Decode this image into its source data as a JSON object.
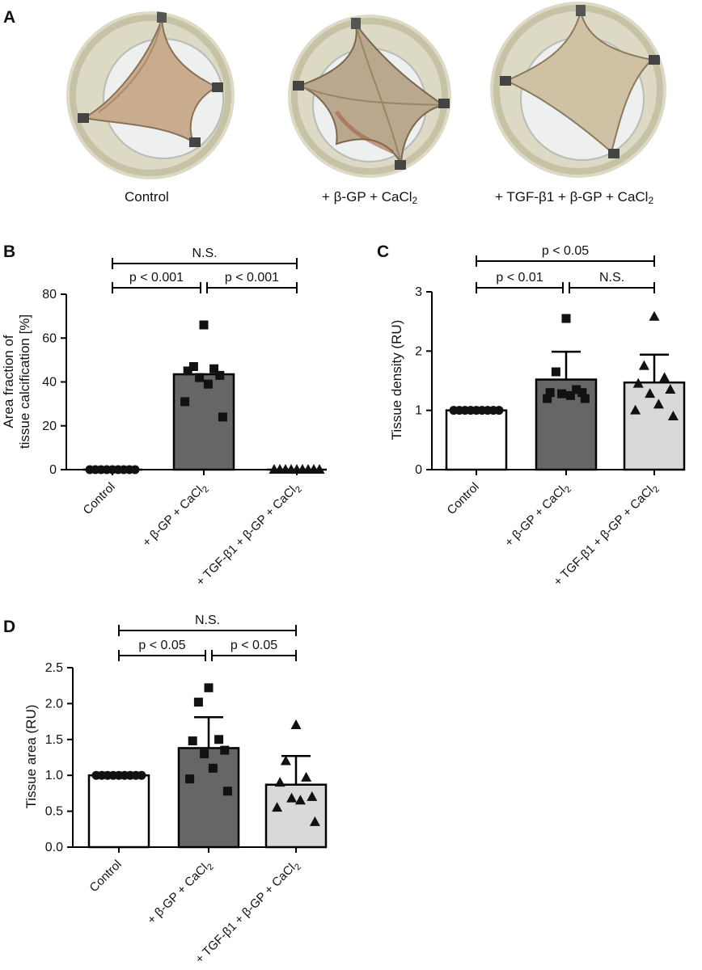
{
  "panel_a": {
    "letter": "A",
    "photos": [
      {
        "label": "Control"
      },
      {
        "label": "+ β-GP + CaCl",
        "subscript": "2"
      },
      {
        "label": "+ TGF-β1 + β-GP + CaCl",
        "subscript": "2"
      }
    ]
  },
  "colors": {
    "control_bar": "#ffffff",
    "bgp_bar": "#666666",
    "tgf_bar": "#d9d9d9",
    "stroke": "#000000"
  },
  "chart_data": [
    {
      "panel": "B",
      "type": "bar",
      "ylabel": [
        "Area fraction of",
        "tissue calcification [%]"
      ],
      "categories": [
        {
          "text": "Control",
          "sub": ""
        },
        {
          "text": "+ β-GP + CaCl",
          "sub": "2"
        },
        {
          "text": "+ TGF-β1 + β-GP + CaCl",
          "sub": "2"
        }
      ],
      "ylim": [
        0,
        80
      ],
      "yticks": [
        0,
        20,
        40,
        60,
        80
      ],
      "yticklabels": [
        "0",
        "20",
        "40",
        "60",
        "80"
      ],
      "means": [
        0,
        43.5,
        0
      ],
      "errors": [
        0,
        0,
        0
      ],
      "points": [
        [
          0,
          0,
          0,
          0,
          0,
          0,
          0,
          0,
          0
        ],
        [
          66,
          47,
          46,
          45,
          43,
          42,
          39,
          31,
          24
        ],
        [
          0,
          0,
          0,
          0,
          0,
          0,
          0,
          0,
          0
        ]
      ],
      "markers": [
        "circle",
        "square",
        "triangle"
      ],
      "comparisons": [
        {
          "from": 0,
          "to": 1,
          "level": 1,
          "label": "p < 0.001"
        },
        {
          "from": 1,
          "to": 2,
          "level": 1,
          "label": "p < 0.001"
        },
        {
          "from": 0,
          "to": 2,
          "level": 2,
          "label": "N.S."
        }
      ]
    },
    {
      "panel": "C",
      "type": "bar",
      "ylabel": [
        "Tissue density (RU)"
      ],
      "categories": [
        {
          "text": "Control",
          "sub": ""
        },
        {
          "text": "+ β-GP + CaCl",
          "sub": "2"
        },
        {
          "text": "+ TGF-β1 + β-GP + CaCl",
          "sub": "2"
        }
      ],
      "ylim": [
        0,
        3
      ],
      "yticks": [
        0,
        1,
        2,
        3
      ],
      "yticklabels": [
        "0",
        "1",
        "2",
        "3"
      ],
      "means": [
        1.0,
        1.52,
        1.47
      ],
      "errors": [
        0,
        0.47,
        0.47
      ],
      "points": [
        [
          1,
          1,
          1,
          1,
          1,
          1,
          1,
          1,
          1
        ],
        [
          2.55,
          1.65,
          1.35,
          1.3,
          1.3,
          1.28,
          1.25,
          1.2,
          1.2
        ],
        [
          2.58,
          1.75,
          1.55,
          1.45,
          1.35,
          1.28,
          1.1,
          1.0,
          0.9
        ]
      ],
      "markers": [
        "circle",
        "square",
        "triangle"
      ],
      "comparisons": [
        {
          "from": 0,
          "to": 1,
          "level": 1,
          "label": "p < 0.01"
        },
        {
          "from": 1,
          "to": 2,
          "level": 1,
          "label": "N.S."
        },
        {
          "from": 0,
          "to": 2,
          "level": 2,
          "label": "p < 0.05"
        }
      ]
    },
    {
      "panel": "D",
      "type": "bar",
      "ylabel": [
        "Tissue area (RU)"
      ],
      "categories": [
        {
          "text": "Control",
          "sub": ""
        },
        {
          "text": "+ β-GP + CaCl",
          "sub": "2"
        },
        {
          "text": "+ TGF-β1 + β-GP + CaCl",
          "sub": "2"
        }
      ],
      "ylim": [
        0,
        2.5
      ],
      "yticks": [
        0,
        0.5,
        1.0,
        1.5,
        2.0,
        2.5
      ],
      "yticklabels": [
        "0.0",
        "0.5",
        "1.0",
        "1.5",
        "2.0",
        "2.5"
      ],
      "means": [
        1.0,
        1.38,
        0.87
      ],
      "errors": [
        0,
        0.43,
        0.4
      ],
      "points": [
        [
          1,
          1,
          1,
          1,
          1,
          1,
          1,
          1,
          1
        ],
        [
          2.22,
          2.02,
          1.5,
          1.48,
          1.35,
          1.3,
          1.1,
          0.95,
          0.78
        ],
        [
          1.7,
          1.2,
          0.97,
          0.9,
          0.7,
          0.68,
          0.65,
          0.55,
          0.35
        ]
      ],
      "markers": [
        "circle",
        "square",
        "triangle"
      ],
      "comparisons": [
        {
          "from": 0,
          "to": 1,
          "level": 1,
          "label": "p < 0.05"
        },
        {
          "from": 1,
          "to": 2,
          "level": 1,
          "label": "p < 0.05"
        },
        {
          "from": 0,
          "to": 2,
          "level": 2,
          "label": "N.S."
        }
      ]
    }
  ]
}
